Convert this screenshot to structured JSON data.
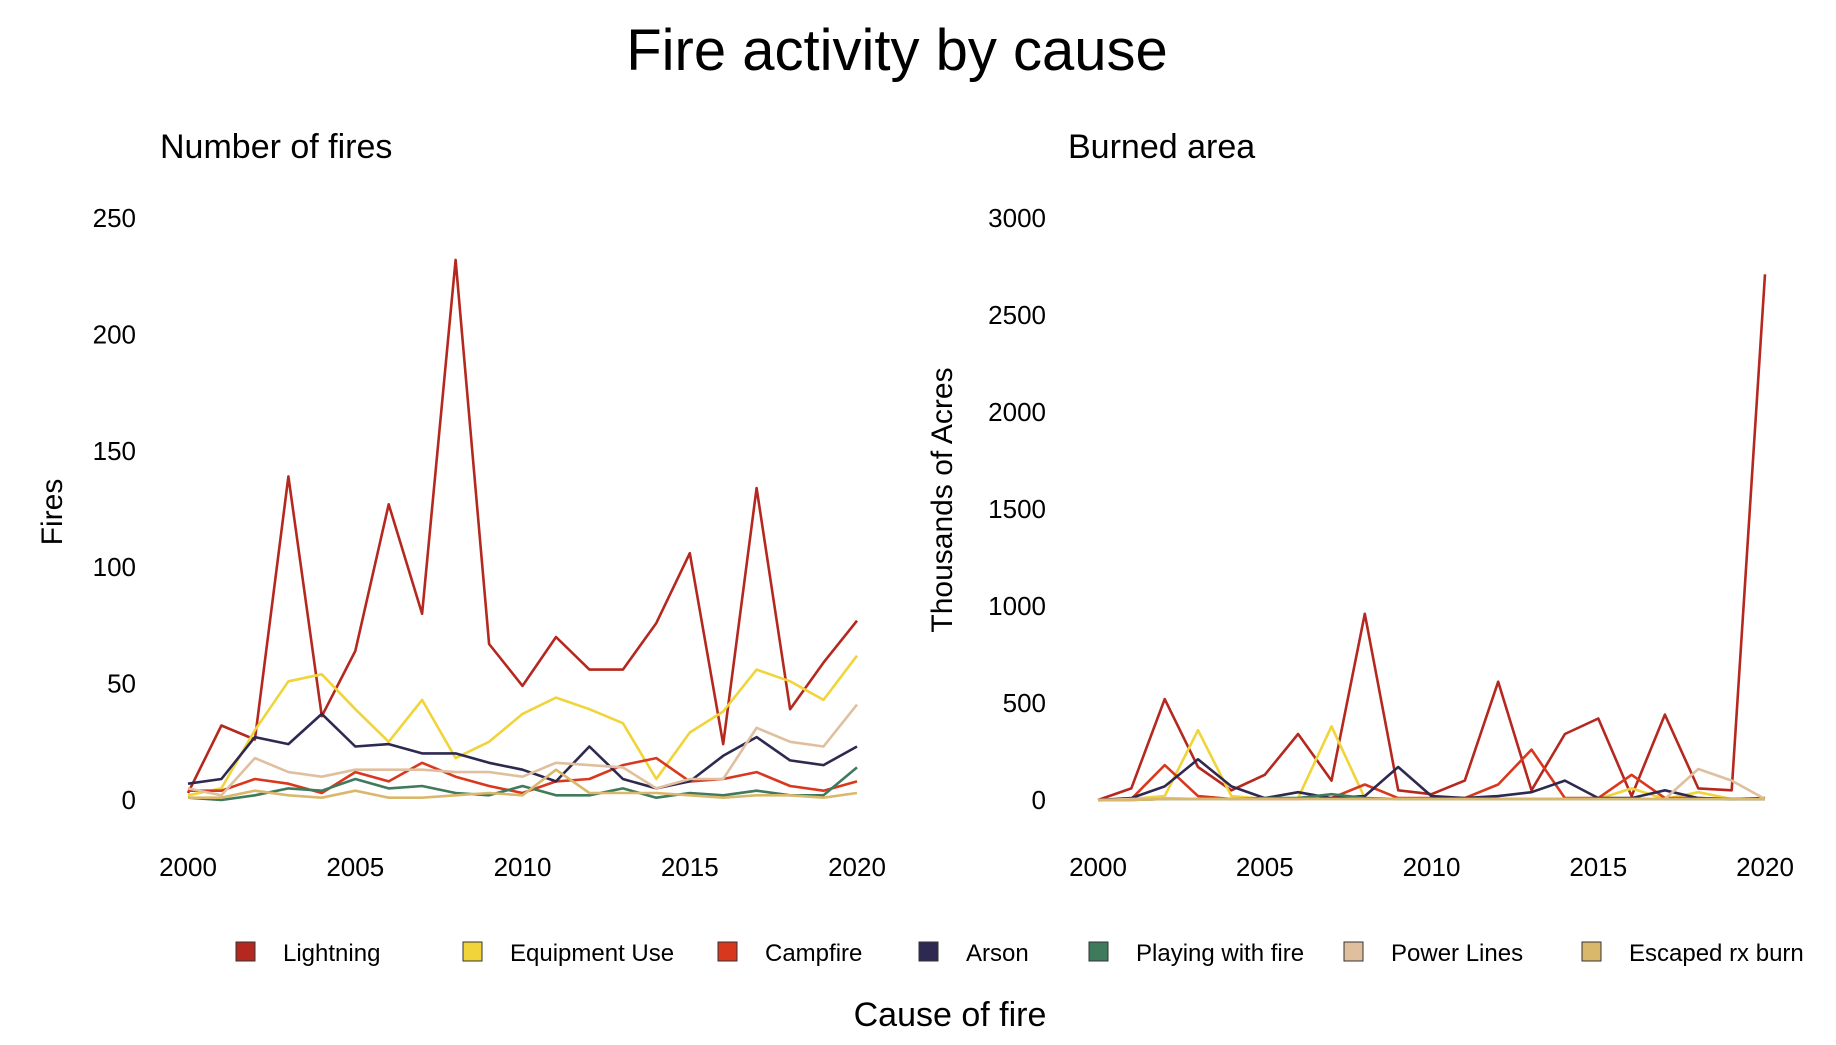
{
  "title": "Fire activity by cause",
  "caption": "Cause of fire",
  "legend": [
    {
      "label": "Lightning",
      "color": "#b5281f"
    },
    {
      "label": "Equipment Use",
      "color": "#f0d43a"
    },
    {
      "label": "Campfire",
      "color": "#d8381e"
    },
    {
      "label": "Arson",
      "color": "#2e2950"
    },
    {
      "label": "Playing with fire",
      "color": "#3f7a5d"
    },
    {
      "label": "Power Lines",
      "color": "#e0bf9f"
    },
    {
      "label": "Escaped rx burn",
      "color": "#d9b86c"
    }
  ],
  "chart_data": [
    {
      "type": "line",
      "title": "Number of fires",
      "ylabel": "Fires",
      "xlabel": "",
      "x": [
        2000,
        2001,
        2002,
        2003,
        2004,
        2005,
        2006,
        2007,
        2008,
        2009,
        2010,
        2011,
        2012,
        2013,
        2014,
        2015,
        2016,
        2017,
        2018,
        2019,
        2020
      ],
      "xlim": [
        2000,
        2020
      ],
      "ylim": [
        0,
        250
      ],
      "xticks": [
        2000,
        2005,
        2010,
        2015,
        2020
      ],
      "yticks": [
        0,
        50,
        100,
        150,
        200,
        250
      ],
      "grid": false,
      "series": [
        {
          "name": "Lightning",
          "color": "#b5281f",
          "values": [
            3,
            32,
            26,
            139,
            36,
            64,
            127,
            80,
            232,
            67,
            49,
            70,
            56,
            56,
            76,
            106,
            24,
            134,
            39,
            59,
            77
          ]
        },
        {
          "name": "Equipment Use",
          "color": "#f0d43a",
          "values": [
            2,
            5,
            30,
            51,
            54,
            39,
            25,
            43,
            18,
            25,
            37,
            44,
            39,
            33,
            9,
            29,
            38,
            56,
            51,
            43,
            62
          ]
        },
        {
          "name": "Campfire",
          "color": "#d8381e",
          "values": [
            4,
            4,
            9,
            7,
            3,
            12,
            8,
            16,
            10,
            6,
            3,
            8,
            9,
            15,
            18,
            8,
            9,
            12,
            6,
            4,
            8
          ]
        },
        {
          "name": "Arson",
          "color": "#2e2950",
          "values": [
            7,
            9,
            27,
            24,
            37,
            23,
            24,
            20,
            20,
            16,
            13,
            8,
            23,
            9,
            5,
            8,
            19,
            27,
            17,
            15,
            23
          ]
        },
        {
          "name": "Playing with fire",
          "color": "#3f7a5d",
          "values": [
            1,
            0,
            2,
            5,
            4,
            9,
            5,
            6,
            3,
            2,
            6,
            2,
            2,
            5,
            1,
            3,
            2,
            4,
            2,
            2,
            14
          ]
        },
        {
          "name": "Power Lines",
          "color": "#e0bf9f",
          "values": [
            5,
            2,
            18,
            12,
            10,
            13,
            13,
            13,
            12,
            12,
            10,
            16,
            15,
            14,
            5,
            9,
            9,
            31,
            25,
            23,
            41
          ]
        },
        {
          "name": "Escaped rx burn",
          "color": "#d9b86c",
          "values": [
            1,
            1,
            4,
            2,
            1,
            4,
            1,
            1,
            2,
            3,
            2,
            13,
            3,
            3,
            3,
            2,
            1,
            2,
            2,
            1,
            3
          ]
        }
      ]
    },
    {
      "type": "line",
      "title": "Burned area",
      "ylabel": "Thousands of Acres",
      "xlabel": "",
      "x": [
        2000,
        2001,
        2002,
        2003,
        2004,
        2005,
        2006,
        2007,
        2008,
        2009,
        2010,
        2011,
        2012,
        2013,
        2014,
        2015,
        2016,
        2017,
        2018,
        2019,
        2020
      ],
      "xlim": [
        2000,
        2020
      ],
      "ylim": [
        0,
        3000
      ],
      "xticks": [
        2000,
        2005,
        2010,
        2015,
        2020
      ],
      "yticks": [
        0,
        500,
        1000,
        1500,
        2000,
        2500,
        3000
      ],
      "grid": false,
      "series": [
        {
          "name": "Lightning",
          "color": "#b5281f",
          "values": [
            0,
            60,
            520,
            170,
            50,
            130,
            340,
            100,
            960,
            50,
            30,
            100,
            610,
            50,
            340,
            420,
            20,
            440,
            60,
            50,
            2710
          ]
        },
        {
          "name": "Equipment Use",
          "color": "#f0d43a",
          "values": [
            0,
            5,
            20,
            360,
            20,
            5,
            10,
            380,
            10,
            5,
            5,
            5,
            5,
            5,
            5,
            5,
            60,
            5,
            40,
            5,
            5
          ]
        },
        {
          "name": "Campfire",
          "color": "#d8381e",
          "values": [
            0,
            5,
            180,
            20,
            5,
            5,
            5,
            10,
            80,
            10,
            10,
            10,
            80,
            260,
            10,
            10,
            130,
            10,
            10,
            5,
            5
          ]
        },
        {
          "name": "Arson",
          "color": "#2e2950",
          "values": [
            0,
            10,
            70,
            210,
            70,
            10,
            40,
            10,
            20,
            170,
            20,
            10,
            20,
            40,
            100,
            10,
            10,
            50,
            10,
            5,
            10
          ]
        },
        {
          "name": "Playing with fire",
          "color": "#3f7a5d",
          "values": [
            0,
            0,
            5,
            5,
            5,
            10,
            10,
            30,
            10,
            5,
            5,
            5,
            5,
            5,
            5,
            5,
            5,
            5,
            5,
            5,
            5
          ]
        },
        {
          "name": "Power Lines",
          "color": "#e0bf9f",
          "values": [
            0,
            5,
            10,
            5,
            5,
            5,
            5,
            5,
            5,
            5,
            5,
            5,
            5,
            5,
            5,
            5,
            5,
            5,
            160,
            100,
            5
          ]
        },
        {
          "name": "Escaped rx burn",
          "color": "#d9b86c",
          "values": [
            0,
            0,
            5,
            5,
            5,
            5,
            5,
            5,
            5,
            5,
            5,
            5,
            5,
            5,
            5,
            5,
            5,
            5,
            5,
            5,
            5
          ]
        }
      ]
    }
  ]
}
